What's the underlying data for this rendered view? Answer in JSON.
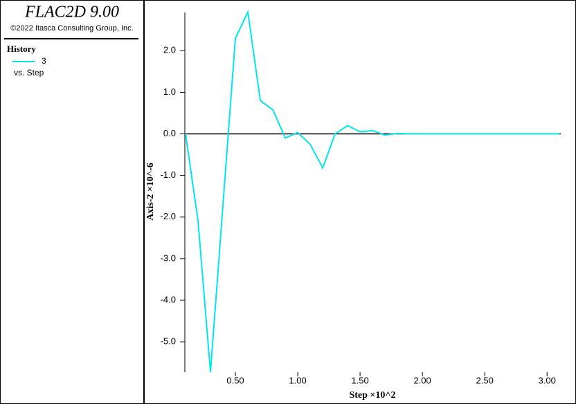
{
  "header": {
    "title": "FLAC2D 9.00",
    "copyright": "©2022 Itasca Consulting Group, Inc."
  },
  "chart_data": {
    "type": "line",
    "legend_title": "History",
    "legend_subtitle": "vs. Step",
    "xlabel": "Step ×10^2",
    "ylabel": "Axis-2 ×10^-6",
    "x": [
      0.1,
      0.2,
      0.3,
      0.4,
      0.5,
      0.6,
      0.7,
      0.8,
      0.9,
      1.0,
      1.1,
      1.2,
      1.3,
      1.4,
      1.5,
      1.6,
      1.7,
      1.8,
      1.9,
      2.0,
      2.1,
      2.2,
      2.3,
      2.4,
      2.5,
      2.6,
      2.7,
      2.8,
      2.9,
      3.0,
      3.1
    ],
    "series": [
      {
        "name": "3",
        "color": "#00e5ee",
        "values": [
          0,
          -2.08,
          -5.73,
          -1.72,
          2.3,
          2.93,
          0.8,
          0.58,
          -0.1,
          0.03,
          -0.25,
          -0.82,
          0.0,
          0.2,
          0.05,
          0.08,
          -0.03,
          0.01,
          0,
          0,
          0,
          0,
          0,
          0,
          0,
          0,
          0,
          0,
          0,
          0,
          0
        ]
      }
    ],
    "xlim": [
      0.1,
      3.11
    ],
    "ylim": [
      -5.73,
      2.92
    ],
    "xticks": [
      {
        "value": 0.5,
        "label": "0.50"
      },
      {
        "value": 1,
        "label": "1.00"
      },
      {
        "value": 1.5,
        "label": "1.50"
      },
      {
        "value": 2,
        "label": "2.00"
      },
      {
        "value": 2.5,
        "label": "2.50"
      },
      {
        "value": 3,
        "label": "3.00"
      }
    ],
    "yticks": [
      {
        "value": 2,
        "label": "2.0"
      },
      {
        "value": 1,
        "label": "1.0"
      },
      {
        "value": 0,
        "label": "0.0"
      },
      {
        "value": -1,
        "label": "-1.0"
      },
      {
        "value": -2,
        "label": "-2.0"
      },
      {
        "value": -3,
        "label": "-3.0"
      },
      {
        "value": -4,
        "label": "-4.0"
      },
      {
        "value": -5,
        "label": "-5.0"
      }
    ],
    "zero_line": true
  }
}
